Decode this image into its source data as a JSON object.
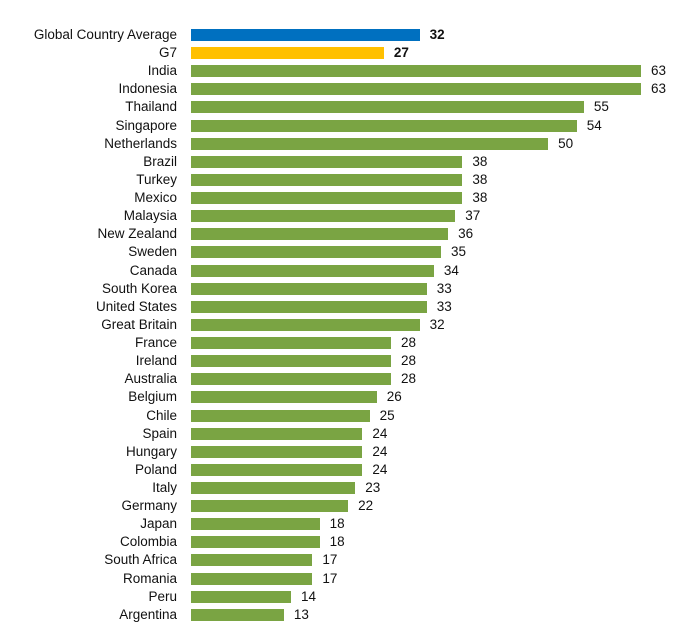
{
  "chart_data": {
    "type": "bar",
    "orientation": "horizontal",
    "title": "",
    "xlabel": "",
    "ylabel": "",
    "xlim": [
      0,
      63
    ],
    "grid": false,
    "colors": {
      "global": "#0070C0",
      "g7": "#FFC000",
      "country": "#7AA443"
    },
    "categories": [
      "Global Country Average",
      "G7",
      "India",
      "Indonesia",
      "Thailand",
      "Singapore",
      "Netherlands",
      "Brazil",
      "Turkey",
      "Mexico",
      "Malaysia",
      "New Zealand",
      "Sweden",
      "Canada",
      "South Korea",
      "United States",
      "Great Britain",
      "France",
      "Ireland",
      "Australia",
      "Belgium",
      "Chile",
      "Spain",
      "Hungary",
      "Poland",
      "Italy",
      "Germany",
      "Japan",
      "Colombia",
      "South Africa",
      "Romania",
      "Peru",
      "Argentina"
    ],
    "values": [
      32,
      27,
      63,
      63,
      55,
      54,
      50,
      38,
      38,
      38,
      37,
      36,
      35,
      34,
      33,
      33,
      32,
      28,
      28,
      28,
      26,
      25,
      24,
      24,
      24,
      23,
      22,
      18,
      18,
      17,
      17,
      14,
      13
    ]
  }
}
